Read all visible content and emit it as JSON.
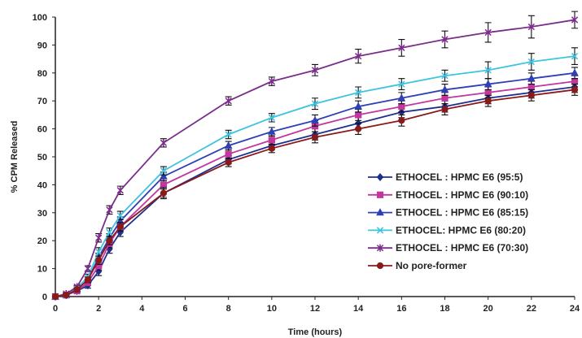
{
  "chart_data": {
    "type": "line",
    "title": "",
    "xlabel": "Time (hours)",
    "ylabel": "% CPM Released",
    "xlim": [
      0,
      24
    ],
    "ylim": [
      0,
      100
    ],
    "xticks": [
      0,
      2,
      4,
      6,
      8,
      10,
      12,
      14,
      16,
      18,
      20,
      22,
      24
    ],
    "yticks": [
      0,
      10,
      20,
      30,
      40,
      50,
      60,
      70,
      80,
      90,
      100
    ],
    "grid": false,
    "legend_position": "bottom-right",
    "x": [
      0,
      0.5,
      1,
      1.5,
      2,
      2.5,
      3,
      5,
      8,
      10,
      12,
      14,
      16,
      18,
      20,
      22,
      24
    ],
    "series": [
      {
        "name": "ETHOCEL : HPMC E6 (95:5)",
        "color": "#1f2f8f",
        "marker": "diamond",
        "values": [
          0,
          0.5,
          2,
          4,
          9,
          17,
          23,
          37,
          49,
          54,
          58,
          62,
          66,
          68,
          71,
          73,
          75
        ],
        "errors": [
          0,
          0.3,
          0.5,
          1,
          1.5,
          1.5,
          1.5,
          1.5,
          1.5,
          1.5,
          2,
          2,
          2,
          2,
          2,
          2,
          2
        ]
      },
      {
        "name": "ETHOCEL : HPMC E6 (90:10)",
        "color": "#c2369e",
        "marker": "square",
        "values": [
          0,
          0.5,
          2,
          5,
          11,
          19,
          25,
          40,
          51,
          56,
          61,
          65,
          68,
          71,
          73,
          75,
          77
        ],
        "errors": [
          0,
          0.3,
          0.5,
          1,
          1.5,
          1.5,
          1.5,
          1.5,
          1.5,
          1.5,
          2,
          2,
          2,
          2,
          2,
          2,
          2
        ]
      },
      {
        "name": "ETHOCEL : HPMC E6 (85:15)",
        "color": "#2f3fb5",
        "marker": "triangle",
        "values": [
          0,
          0.5,
          2.5,
          6,
          14,
          21,
          27,
          43,
          54,
          59,
          63,
          68,
          71,
          74,
          76,
          78,
          80
        ],
        "errors": [
          0,
          0.3,
          0.5,
          1,
          1.5,
          1.5,
          1.5,
          1.5,
          1.5,
          1.5,
          2,
          2,
          2,
          2,
          2,
          2,
          2
        ]
      },
      {
        "name": "ETHOCEL: HPMC E6 (80:20)",
        "color": "#3fc3df",
        "marker": "x",
        "values": [
          0,
          0.5,
          3,
          7,
          16,
          23,
          29,
          45,
          58,
          64,
          69,
          73,
          76,
          79,
          81,
          84,
          86
        ],
        "errors": [
          0,
          0.3,
          0.5,
          1,
          1.5,
          1.5,
          1.5,
          1.5,
          1.5,
          1.5,
          2,
          2,
          2,
          2,
          3,
          3,
          3
        ]
      },
      {
        "name": "ETHOCEL : HPMC E6 (70:30)",
        "color": "#7a2d8a",
        "marker": "star",
        "values": [
          0,
          1,
          3.5,
          10,
          21,
          31,
          38,
          55,
          70,
          77,
          81,
          86,
          89,
          92,
          94.5,
          96.5,
          99
        ],
        "errors": [
          0,
          0.3,
          0.5,
          1,
          1.5,
          1.5,
          1.5,
          1.5,
          1.5,
          1.5,
          2,
          2.5,
          3,
          3,
          3.5,
          4,
          3
        ]
      },
      {
        "name": "No pore-former",
        "color": "#8a1a1a",
        "marker": "circle",
        "values": [
          0,
          0.5,
          2.5,
          6,
          13,
          20,
          25,
          37,
          48,
          53,
          57,
          60,
          63,
          67,
          70,
          72,
          74
        ],
        "errors": [
          0,
          0.3,
          0.5,
          1,
          1.5,
          1.5,
          1.5,
          2,
          1.5,
          1.5,
          2,
          2,
          2,
          2,
          2,
          2,
          2
        ]
      }
    ]
  }
}
